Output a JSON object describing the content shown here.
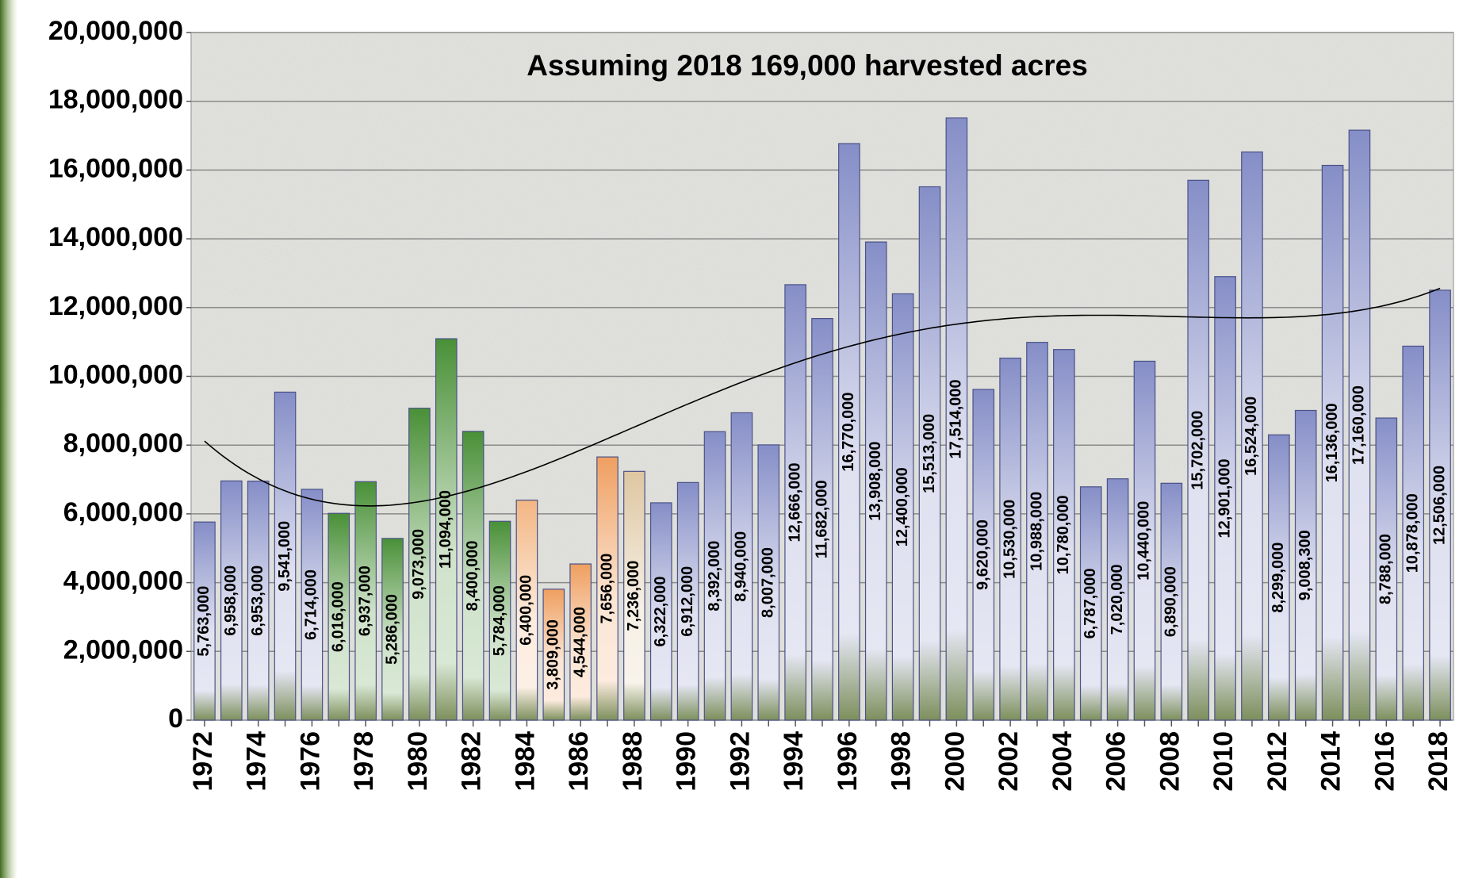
{
  "chart_data": {
    "type": "bar",
    "title": "Assuming 2018 169,000 harvested acres",
    "categories": [
      "1972",
      null,
      "1974",
      null,
      "1976",
      null,
      "1978",
      null,
      "1980",
      null,
      "1982",
      null,
      "1984",
      null,
      "1986",
      null,
      "1988",
      null,
      "1990",
      null,
      "1992",
      null,
      "1994",
      null,
      "1996",
      null,
      "1998",
      null,
      "2000",
      null,
      "2002",
      null,
      "2004",
      null,
      "2006",
      null,
      "2008",
      null,
      "2010",
      null,
      "2012",
      null,
      "2014",
      null,
      "2016",
      null,
      "2018"
    ],
    "values": [
      5763000,
      6958000,
      6953000,
      9541000,
      6714000,
      6016000,
      6937000,
      5286000,
      9073000,
      11094000,
      8400000,
      5784000,
      6400000,
      3809000,
      4544000,
      7656000,
      7236000,
      6322000,
      6912000,
      8392000,
      8940000,
      8007000,
      12666000,
      11682000,
      16770000,
      13908000,
      12400000,
      15513000,
      17514000,
      9620000,
      10530000,
      10988000,
      10780000,
      6787000,
      7020000,
      10440000,
      6890000,
      15702000,
      12901000,
      16524000,
      8299000,
      9008300,
      16136000,
      17160000,
      8788000,
      10878000,
      12506000
    ],
    "value_labels": [
      "5,763,000",
      "6,958,000",
      "6,953,000",
      "9,541,000",
      "6,714,000",
      "6,016,000",
      "6,937,000",
      "5,286,000",
      "9,073,000",
      "11,094,000",
      "8,400,000",
      "5,784,000",
      "6,400,000",
      "3,809,000",
      "4,544,000",
      "7,656,000",
      "7,236,000",
      "6,322,000",
      "6,912,000",
      "8,392,000",
      "8,940,000",
      "8,007,000",
      "12,666,000",
      "11,682,000",
      "16,770,000",
      "13,908,000",
      "12,400,000",
      "15,513,000",
      "17,514,000",
      "9,620,000",
      "10,530,000",
      "10,988,000",
      "10,780,000",
      "6,787,000",
      "7,020,000",
      "10,440,000",
      "6,890,000",
      "15,702,000",
      "12,901,000",
      "16,524,000",
      "8,299,000",
      "9,008,300",
      "16,136,000",
      "17,160,000",
      "8,788,000",
      "10,878,000",
      "12,506,000"
    ],
    "colors": [
      "#7f88c4",
      "#7f88c4",
      "#7f88c4",
      "#7f88c4",
      "#7f88c4",
      "#3f8a2c",
      "#3f8a2c",
      "#3f8a2c",
      "#3f8a2c",
      "#3f8a2c",
      "#3f8a2c",
      "#3f8a2c",
      "#f2b27c",
      "#ee9a58",
      "#ee9a58",
      "#ee9a58",
      "#dcc39c",
      "#7f88c4",
      "#7f88c4",
      "#7f88c4",
      "#7f88c4",
      "#7f88c4",
      "#7f88c4",
      "#7f88c4",
      "#7f88c4",
      "#7f88c4",
      "#7f88c4",
      "#7f88c4",
      "#7f88c4",
      "#7f88c4",
      "#7f88c4",
      "#7f88c4",
      "#7f88c4",
      "#7f88c4",
      "#7f88c4",
      "#7f88c4",
      "#7f88c4",
      "#7f88c4",
      "#7f88c4",
      "#7f88c4",
      "#7f88c4",
      "#7f88c4",
      "#7f88c4",
      "#7f88c4",
      "#7f88c4",
      "#7f88c4",
      "#7f88c4"
    ],
    "ylim": [
      0,
      20000000
    ],
    "yticks": [
      0,
      {
        "value": 2000000,
        "label": "2,000,000"
      },
      {
        "value": 4000000,
        "label": "4,000,000"
      },
      {
        "value": 6000000,
        "label": "6,000,000"
      },
      {
        "value": 8000000,
        "label": "8,000,000"
      },
      {
        "value": 10000000,
        "label": "10,000,000"
      },
      {
        "value": 12000000,
        "label": "12,000,000"
      },
      {
        "value": 14000000,
        "label": "14,000,000"
      },
      {
        "value": 16000000,
        "label": "16,000,000"
      },
      {
        "value": 18000000,
        "label": "18,000,000"
      },
      {
        "value": 20000000,
        "label": "20,000,000"
      }
    ],
    "grid": true,
    "trendline": true
  }
}
